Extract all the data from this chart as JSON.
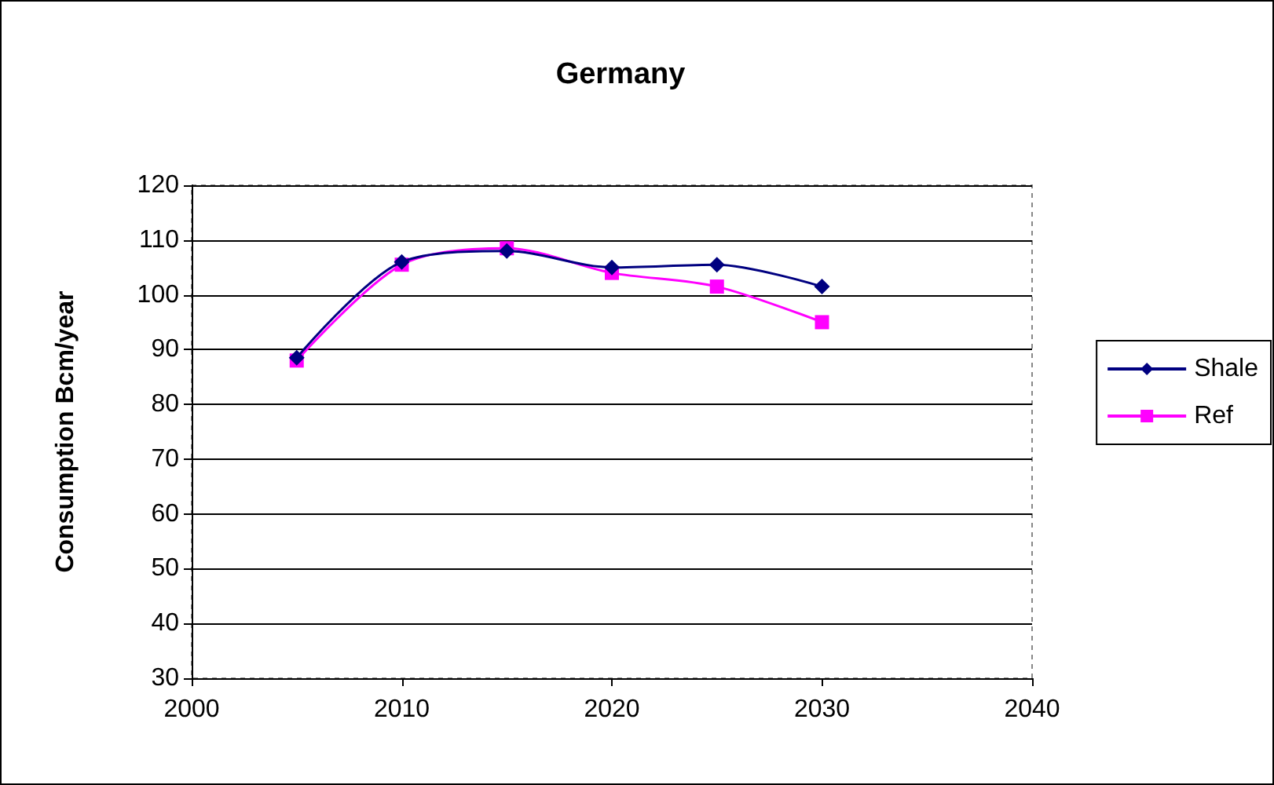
{
  "chart_data": {
    "type": "line",
    "title": "Germany",
    "ylabel": "Consumption Bcm/year",
    "x": [
      2005,
      2010,
      2015,
      2020,
      2025,
      2030
    ],
    "series": [
      {
        "name": "Shale",
        "color": "#000080",
        "marker": "diamond",
        "values": [
          88.5,
          106,
          108,
          105,
          105.5,
          101.5
        ]
      },
      {
        "name": "Ref",
        "color": "#ff00ff",
        "marker": "square",
        "values": [
          88,
          105.5,
          108.5,
          104,
          101.5,
          95
        ]
      }
    ],
    "xlim": [
      2000,
      2040
    ],
    "xticks": [
      2000,
      2010,
      2020,
      2030,
      2040
    ],
    "ylim": [
      30,
      120
    ],
    "yticks": [
      30,
      40,
      50,
      60,
      70,
      80,
      90,
      100,
      110,
      120
    ],
    "grid": "y",
    "legend": "right"
  }
}
